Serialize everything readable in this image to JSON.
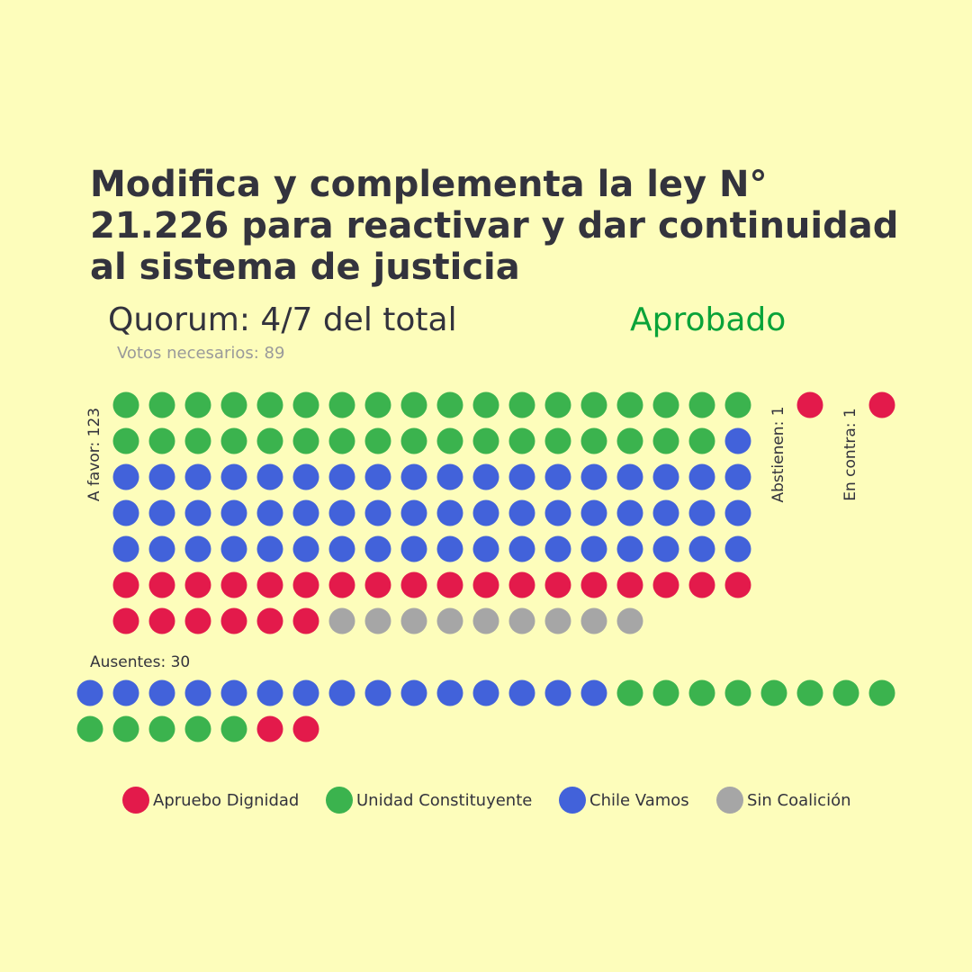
{
  "header": {
    "title": "Modifica y complementa la ley N° 21.226 para reactivar y dar continuidad al sistema de justicia",
    "quorum": "Quorum: 4/7 del total",
    "result": "Aprobado",
    "votes_needed": "Votos necesarios: 89"
  },
  "colors": {
    "background": "#fdfdbb",
    "result": "#0aa339",
    "Apruebo Dignidad": "#e31a4b",
    "Unidad Constituyente": "#3bb34e",
    "Chile Vamos": "#4262da",
    "Sin Coalición": "#a6a6a6"
  },
  "chart_data": {
    "type": "waffle",
    "title": "Modifica y complementa la ley N° 21.226 para reactivar y dar continuidad al sistema de justicia",
    "groups": [
      {
        "label": "A favor: 123",
        "total": 123,
        "counts": {
          "Unidad Constituyente": 35,
          "Chile Vamos": 55,
          "Apruebo Dignidad": 24,
          "Sin Coalición": 9
        }
      },
      {
        "label": "Abstienen: 1",
        "total": 1,
        "counts": {
          "Apruebo Dignidad": 1
        }
      },
      {
        "label": "En contra: 1",
        "total": 1,
        "counts": {
          "Apruebo Dignidad": 1
        }
      },
      {
        "label": "Ausentes: 30",
        "total": 30,
        "counts": {
          "Chile Vamos": 15,
          "Unidad Constituyente": 13,
          "Apruebo Dignidad": 2
        }
      }
    ],
    "legend": [
      "Apruebo Dignidad",
      "Unidad Constituyente",
      "Chile Vamos",
      "Sin Coalición"
    ],
    "legend_position": "bottom"
  }
}
